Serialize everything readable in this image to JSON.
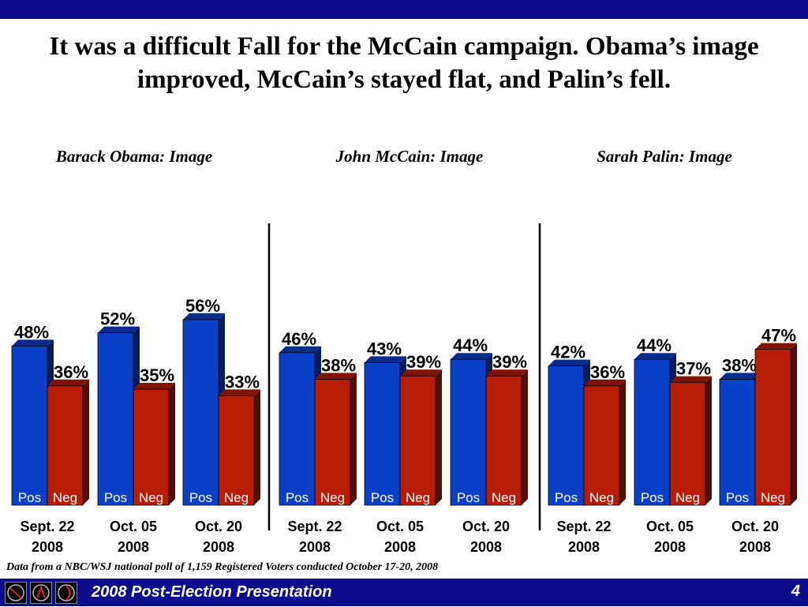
{
  "slide": {
    "title": "It was a difficult Fall for the McCain campaign.  Obama’s image improved, McCain’s stayed flat, and Palin’s fell.",
    "footnote": "Data from a NBC/WSJ national poll of 1,159 Registered Voters conducted October 17-20, 2008",
    "footer_title": "2008 Post-Election Presentation",
    "page_number": "4"
  },
  "colors": {
    "positive": "#0a3fc8",
    "negative": "#b71c05",
    "bar_top_band": "#0c0c8c"
  },
  "chart_data": [
    {
      "type": "bar",
      "title": "Barack Obama: Image",
      "categories": [
        "Sept. 22 2008",
        "Oct. 05 2008",
        "Oct. 20 2008"
      ],
      "series": [
        {
          "name": "Pos",
          "values": [
            48,
            52,
            56
          ]
        },
        {
          "name": "Neg",
          "values": [
            36,
            35,
            33
          ]
        }
      ],
      "value_format": "%"
    },
    {
      "type": "bar",
      "title": "John McCain: Image",
      "categories": [
        "Sept. 22 2008",
        "Oct. 05 2008",
        "Oct. 20 2008"
      ],
      "series": [
        {
          "name": "Pos",
          "values": [
            46,
            43,
            44
          ]
        },
        {
          "name": "Neg",
          "values": [
            38,
            39,
            39
          ]
        }
      ],
      "value_format": "%"
    },
    {
      "type": "bar",
      "title": "Sarah Palin: Image",
      "categories": [
        "Sept. 22 2008",
        "Oct. 05 2008",
        "Oct. 20 2008"
      ],
      "series": [
        {
          "name": "Pos",
          "values": [
            42,
            44,
            38
          ]
        },
        {
          "name": "Neg",
          "values": [
            36,
            37,
            47
          ]
        }
      ],
      "value_format": "%"
    }
  ]
}
